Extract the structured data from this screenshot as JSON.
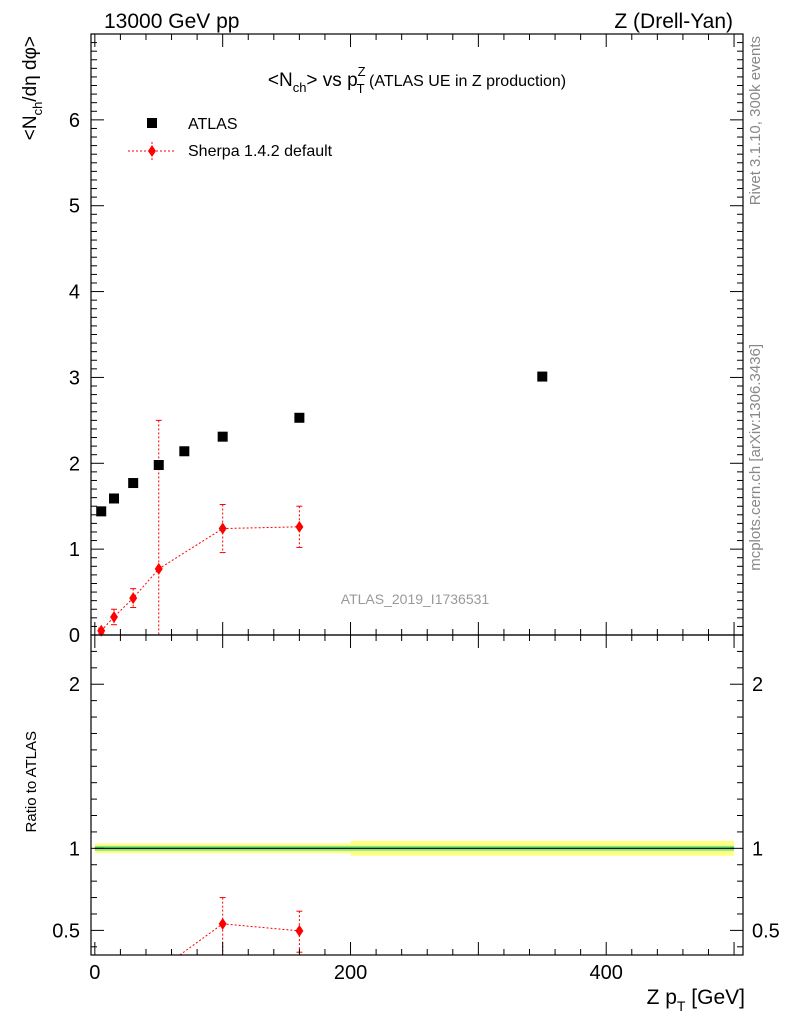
{
  "header": {
    "left": "13000 GeV pp",
    "right": "Z (Drell-Yan)"
  },
  "side": {
    "rivet": "Rivet 3.1.10,  300k events",
    "mcplots": "mcplots.cern.ch [arXiv:1306.3436]"
  },
  "colors": {
    "atlas": "#000000",
    "sherpa": "#ff0000",
    "band_inner": "#7fe87f",
    "band_outer": "#ffff80"
  },
  "chart_data": [
    {
      "type": "scatter",
      "title_main": "<N",
      "title_sub": "ch",
      "title_mid": "> vs p",
      "title_sup": "Z",
      "title_sub2": "T",
      "title_tail": " (ATLAS UE in Z production)",
      "ylabel_main": "<N",
      "ylabel_sub": "ch",
      "ylabel_tail": "/dη dφ>",
      "watermark": "ATLAS_2019_I1736531",
      "xlim": [
        -3,
        507
      ],
      "ylim": [
        0,
        7
      ],
      "yticks": [
        0,
        1,
        2,
        3,
        4,
        5,
        6
      ],
      "ytick_labels": [
        "0",
        "1",
        "2",
        "3",
        "4",
        "5",
        "6"
      ],
      "series": [
        {
          "name": "ATLAS",
          "marker": "square",
          "x": [
            5,
            15,
            30,
            50,
            70,
            100,
            160,
            350
          ],
          "y": [
            1.44,
            1.59,
            1.77,
            1.98,
            2.14,
            2.31,
            2.53,
            3.01
          ]
        },
        {
          "name": "Sherpa 1.4.2 default",
          "marker": "diamond",
          "x": [
            5,
            15,
            30,
            50,
            100,
            160
          ],
          "y": [
            0.05,
            0.21,
            0.43,
            0.77,
            1.24,
            1.26
          ],
          "err_low": [
            0.03,
            0.09,
            0.11,
            0.77,
            0.28,
            0.24
          ],
          "err_high": [
            0.03,
            0.09,
            0.11,
            1.73,
            0.28,
            0.24
          ]
        }
      ]
    },
    {
      "type": "scatter",
      "ylabel": "Ratio to ATLAS",
      "xlabel_main": "Z p",
      "xlabel_sub": "T",
      "xlabel_tail": " [GeV]",
      "xlim": [
        -3,
        507
      ],
      "ylim": [
        0.35,
        2.3
      ],
      "xticks": [
        0,
        200,
        400
      ],
      "xtick_labels": [
        "0",
        "200",
        "400"
      ],
      "yticks": [
        0.5,
        1,
        2
      ],
      "ytick_labels": [
        "0.5",
        "1",
        "2"
      ],
      "reference": 1.0,
      "bands": [
        {
          "x": [
            0,
            200
          ],
          "inner": [
            0.985,
            1.015
          ],
          "outer": [
            0.97,
            1.03
          ]
        },
        {
          "x": [
            200,
            500
          ],
          "inner": [
            0.985,
            1.015
          ],
          "outer": [
            0.955,
            1.045
          ]
        }
      ],
      "series": [
        {
          "name": "Sherpa 1.4.2 default",
          "x": [
            100,
            160
          ],
          "y": [
            0.54,
            0.497
          ],
          "err_low": [
            0.2,
            0.13
          ],
          "err_high": [
            0.16,
            0.12
          ],
          "line_in_from": [
            40,
            0.2
          ]
        }
      ]
    }
  ]
}
